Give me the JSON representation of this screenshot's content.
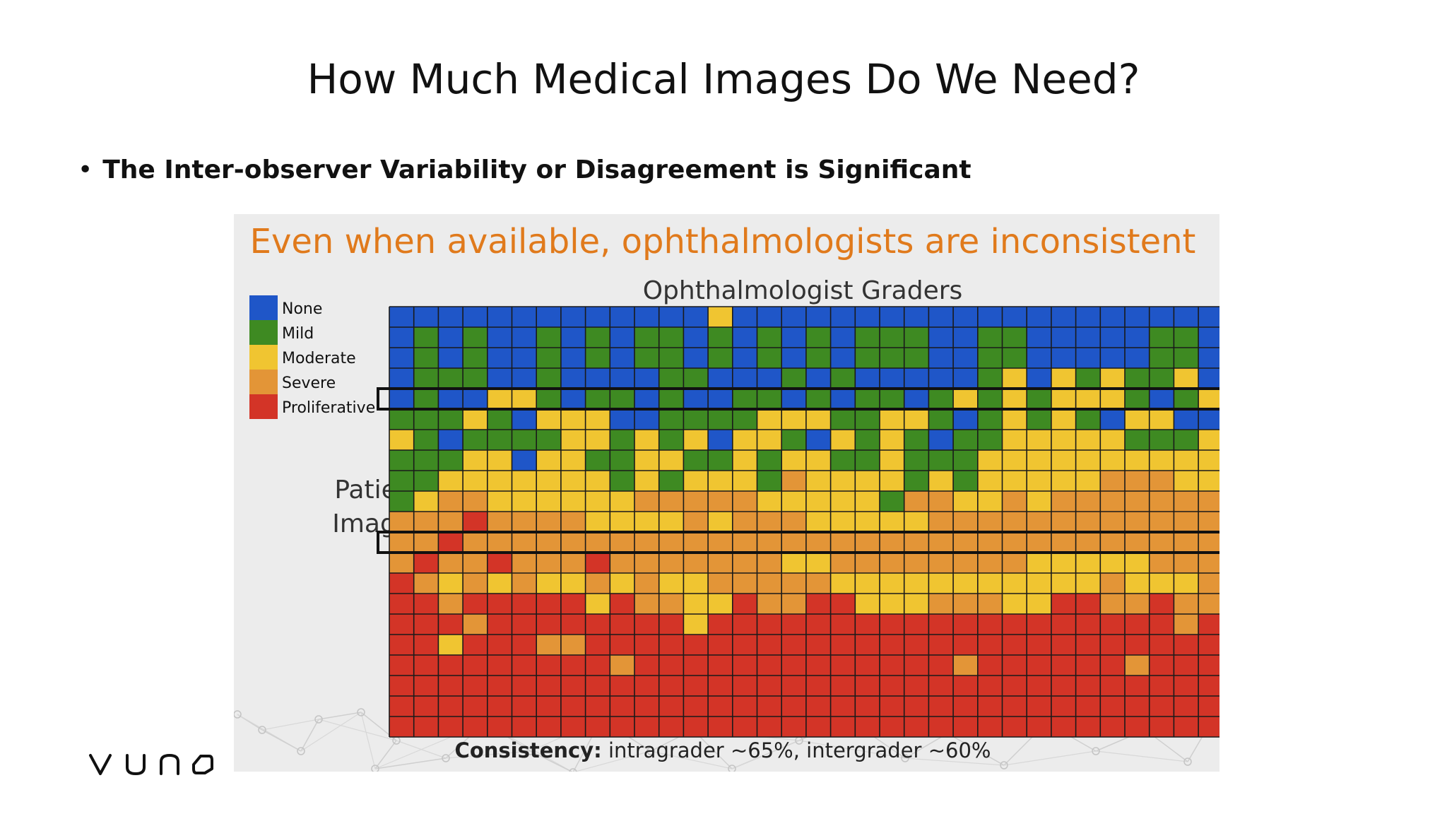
{
  "slide": {
    "title": "How Much Medical Images Do We Need?",
    "bullet": "The Inter-observer Variability or Disagreement is Significant",
    "logo": "vuno"
  },
  "chart_data": {
    "type": "heatmap",
    "title": "Even when available, ophthalmologists are inconsistent",
    "xlabel": "Ophthalmologist Graders",
    "ylabel": "Patient Images",
    "footer_bold": "Consistency:",
    "footer_text": " intragrader ~65%, intergrader ~60%",
    "legend": [
      {
        "label": "None",
        "color": "#1f56c8"
      },
      {
        "label": "Mild",
        "color": "#3e8a22"
      },
      {
        "label": "Moderate",
        "color": "#f0c531"
      },
      {
        "label": "Severe",
        "color": "#e39537"
      },
      {
        "label": "Proliferative",
        "color": "#d33427"
      }
    ],
    "highlighted_rows": [
      4,
      11
    ],
    "rows": [
      "0000000000000200000000000000000000",
      "0101001010110101010111001100000110",
      "0101001010110101010111001100000110",
      "0111001000011000101000001202121120",
      "0100221011010011010110121212221012",
      "1112102220011112221122101212102200",
      "2101111221212022102121011222221112",
      "1112202211221121221121112222222222",
      "1122222221212221322221212222233322",
      "1233222222333332222213322323333333",
      "3334333322223233322222333333333333",
      "3343333333333333333333333333333333",
      "3433433343333333223333333322222333",
      "4323232232322333332222222222232223",
      "4434444424332243344222333224433433",
      "4443444444442444444444444444444434",
      "4424443344444444444444444444444444",
      "4444444443444444444444434444443444",
      "4444444444444444444444444444444444",
      "4444444444444444444444444444444444",
      "4444444444444444444444444444444444"
    ]
  }
}
